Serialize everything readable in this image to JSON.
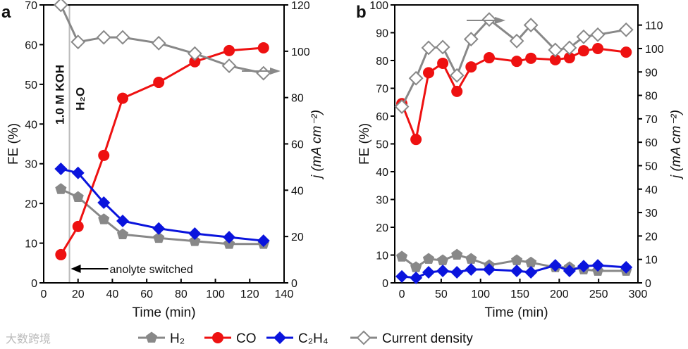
{
  "watermark": "大数跨境",
  "legend": [
    {
      "label": "H₂",
      "color": "#888888",
      "marker": "pentagon"
    },
    {
      "label": "CO",
      "color": "#ee1111",
      "marker": "circle"
    },
    {
      "label": "C₂H₄",
      "color": "#0a14dd",
      "marker": "diamond"
    },
    {
      "label": "Current density",
      "color": "#888888",
      "marker": "open-diamond"
    }
  ],
  "chart_data": [
    {
      "panel": "a",
      "type": "line",
      "xlabel": "Time (min)",
      "ylabel": "FE (%)",
      "y2label": "j (mA cm⁻²)",
      "xlim": [
        0,
        140
      ],
      "ylim": [
        0,
        70
      ],
      "y2lim": [
        0,
        120
      ],
      "xticks": [
        0,
        20,
        40,
        60,
        80,
        100,
        120,
        140
      ],
      "yticks": [
        0,
        10,
        20,
        30,
        40,
        50,
        60,
        70
      ],
      "y2ticks": [
        0,
        20,
        40,
        60,
        80,
        100,
        120
      ],
      "annotations": {
        "pre": "1.0 M KOH",
        "post": "H₂O",
        "switch": "anolyte switched",
        "switch_time": 15
      },
      "x": [
        10,
        20,
        35,
        46,
        67,
        88,
        108,
        128
      ],
      "series": [
        {
          "name": "H₂",
          "axis": "left",
          "values": [
            23.6,
            21.6,
            16.0,
            12.2,
            11.3,
            10.5,
            9.8,
            9.8
          ]
        },
        {
          "name": "CO",
          "axis": "left",
          "values": [
            7.1,
            14.2,
            32.1,
            46.5,
            50.5,
            55.7,
            58.5,
            59.2
          ]
        },
        {
          "name": "C₂H₄",
          "axis": "left",
          "values": [
            28.7,
            27.7,
            20.2,
            15.6,
            13.7,
            12.4,
            11.5,
            10.6
          ]
        },
        {
          "name": "Current density",
          "axis": "right",
          "values": [
            120,
            104,
            106,
            106,
            103.5,
            99,
            93.7,
            90.5
          ]
        }
      ]
    },
    {
      "panel": "b",
      "type": "line",
      "xlabel": "Time (min)",
      "ylabel": "FE (%)",
      "y2label": "j (mA cm⁻²)",
      "xlim": [
        -9,
        300
      ],
      "ylim": [
        0,
        100
      ],
      "y2lim": [
        0,
        118.6
      ],
      "xticks": [
        0,
        50,
        100,
        150,
        200,
        250,
        300
      ],
      "yticks": [
        0,
        10,
        20,
        30,
        40,
        50,
        60,
        70,
        80,
        90,
        100
      ],
      "y2ticks": [
        0,
        10,
        20,
        30,
        40,
        50,
        60,
        70,
        80,
        90,
        100,
        110
      ],
      "x": [
        0,
        18,
        34,
        52,
        70,
        88,
        111,
        146,
        164,
        195,
        213,
        231,
        249,
        285
      ],
      "series": [
        {
          "name": "H₂",
          "axis": "left",
          "values": [
            9.4,
            5.6,
            8.6,
            8.1,
            10.1,
            8.6,
            6.3,
            8.1,
            7.3,
            5.6,
            5.6,
            4.8,
            4.3,
            4.3
          ]
        },
        {
          "name": "CO",
          "axis": "left",
          "values": [
            64.5,
            51.6,
            75.6,
            79,
            68.9,
            77.7,
            81,
            79.7,
            80.8,
            80.3,
            81,
            83.5,
            84.3,
            83
          ]
        },
        {
          "name": "C₂H₄",
          "axis": "left",
          "values": [
            2.3,
            1.8,
            3.8,
            4.3,
            3.8,
            4.8,
            4.8,
            4.3,
            3.8,
            6.3,
            4.3,
            6.0,
            6.3,
            5.6
          ]
        },
        {
          "name": "Current density",
          "axis": "right",
          "values": [
            75.2,
            87.3,
            100.3,
            100.6,
            88.5,
            104,
            112.4,
            103.2,
            110,
            99.4,
            100.3,
            105,
            105.9,
            108
          ]
        }
      ]
    }
  ]
}
